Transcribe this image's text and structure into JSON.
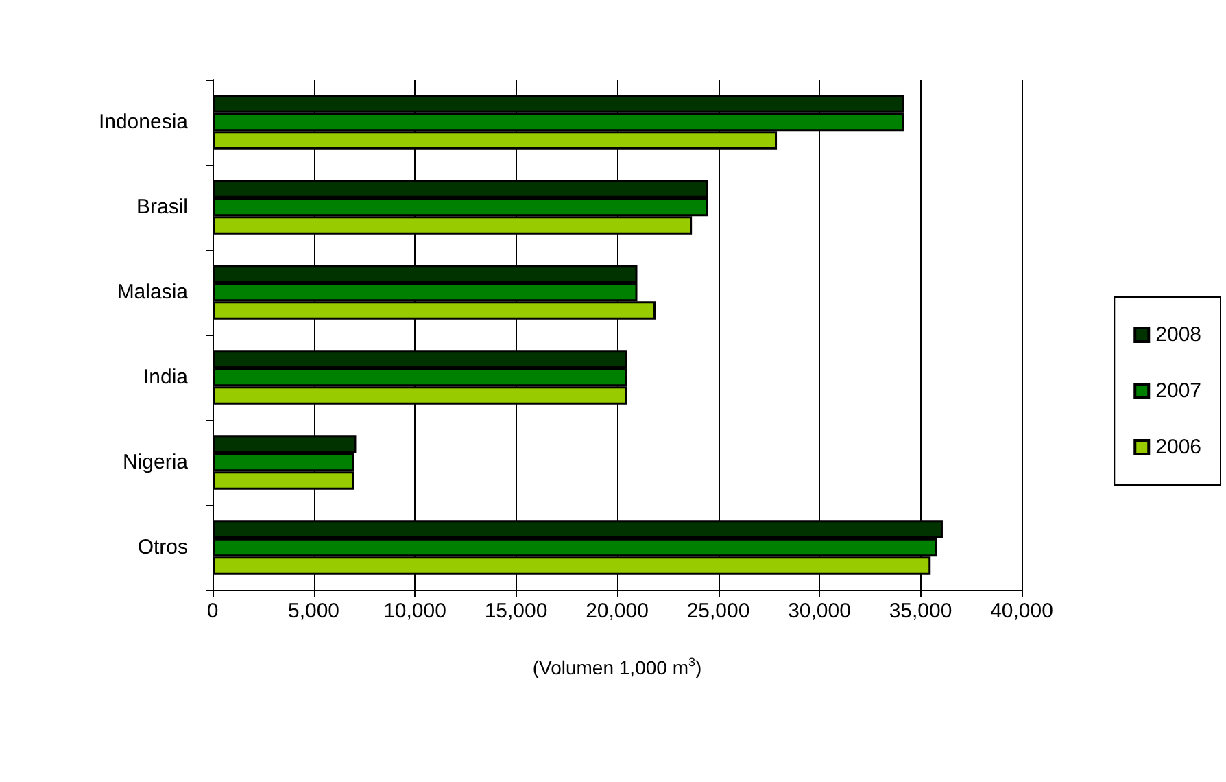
{
  "chart_data": {
    "type": "bar",
    "orientation": "horizontal",
    "categories": [
      "Indonesia",
      "Brasil",
      "Malasia",
      "India",
      "Nigeria",
      "Otros"
    ],
    "series": [
      {
        "name": "2008",
        "color": "#003300",
        "values": [
          34200,
          24500,
          21000,
          20500,
          7100,
          36100
        ]
      },
      {
        "name": "2007",
        "color": "#008000",
        "values": [
          34200,
          24500,
          21000,
          20500,
          7000,
          35800
        ]
      },
      {
        "name": "2006",
        "color": "#99cc00",
        "values": [
          27900,
          23700,
          21900,
          20500,
          7000,
          35500
        ]
      }
    ],
    "xlabel": "(Volumen 1,000 m$^{3}$)",
    "xlim": [
      0,
      40000
    ],
    "xticks": [
      0,
      {
        "value": 5000,
        "label": "5,000"
      },
      {
        "value": 10000,
        "label": "10,000"
      },
      {
        "value": 15000,
        "label": "15,000"
      },
      {
        "value": 20000,
        "label": "20,000"
      },
      {
        "value": 25000,
        "label": "25,000"
      },
      {
        "value": 30000,
        "label": "30,000"
      },
      {
        "value": 35000,
        "label": "35,000"
      },
      {
        "value": 40000,
        "label": "40,000"
      }
    ],
    "grid": "x",
    "legend": "right"
  }
}
